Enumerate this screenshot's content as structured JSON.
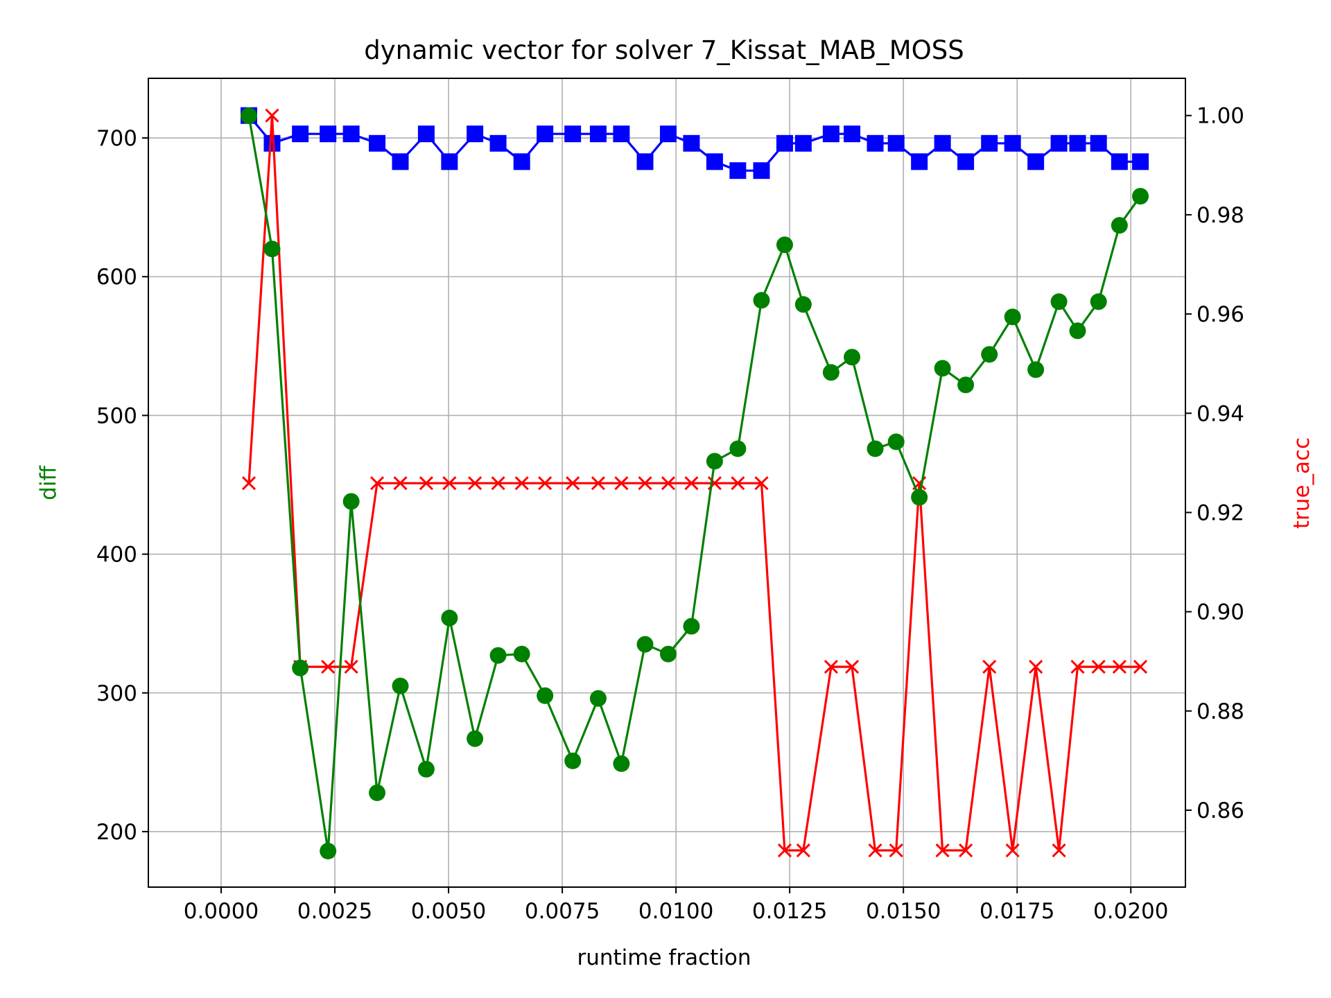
{
  "chart_data": {
    "type": "line",
    "title": "dynamic vector for solver 7_Kissat_MAB_MOSS",
    "xlabel": "runtime fraction",
    "ylabel_left": "diff",
    "ylabel_right": "true_acc",
    "xlim": [
      -0.0016,
      0.0212
    ],
    "ylim_left": [
      160,
      743
    ],
    "ylim_right": [
      0.8445,
      1.0075
    ],
    "x_ticks": [
      0.0,
      0.0025,
      0.005,
      0.0075,
      0.01,
      0.0125,
      0.015,
      0.0175,
      0.02
    ],
    "x_tick_labels": [
      "0.0000",
      "0.0025",
      "0.0050",
      "0.0075",
      "0.0100",
      "0.0125",
      "0.0150",
      "0.0175",
      "0.0200"
    ],
    "y_left_ticks": [
      200,
      300,
      400,
      500,
      600,
      700
    ],
    "y_left_tick_labels": [
      "200",
      "300",
      "400",
      "500",
      "600",
      "700"
    ],
    "y_right_ticks": [
      0.86,
      0.88,
      0.9,
      0.92,
      0.94,
      0.96,
      0.98,
      1.0
    ],
    "y_right_tick_labels": [
      "0.86",
      "0.88",
      "0.90",
      "0.92",
      "0.94",
      "0.96",
      "0.98",
      "1.00"
    ],
    "grid": true,
    "x": [
      0.00061,
      0.00112,
      0.00174,
      0.00235,
      0.00286,
      0.00343,
      0.00394,
      0.00451,
      0.00502,
      0.00558,
      0.00609,
      0.00661,
      0.00712,
      0.00773,
      0.00829,
      0.0088,
      0.00932,
      0.00983,
      0.01034,
      0.01085,
      0.01136,
      0.01188,
      0.01239,
      0.0128,
      0.01341,
      0.01387,
      0.01438,
      0.01484,
      0.01535,
      0.01586,
      0.01637,
      0.01689,
      0.0174,
      0.01791,
      0.01842,
      0.01883,
      0.01929,
      0.01975,
      0.02021
    ],
    "series": [
      {
        "axis": "left",
        "color": "#008000",
        "marker": "circle",
        "values": [
          716,
          620,
          318,
          186,
          438,
          228,
          305,
          245,
          354,
          267,
          327,
          328,
          298,
          251,
          296,
          249,
          335,
          328,
          348,
          467,
          476,
          583,
          623,
          580,
          531,
          542,
          476,
          481,
          441,
          534,
          522,
          544,
          571,
          533,
          582,
          561,
          582,
          637,
          658
        ]
      },
      {
        "axis": "right",
        "color": "#0000ff",
        "marker": "square",
        "values": [
          1.0,
          0.9944,
          0.9963,
          0.9963,
          0.9963,
          0.9944,
          0.9907,
          0.9963,
          0.9907,
          0.9963,
          0.9944,
          0.9907,
          0.9963,
          0.9963,
          0.9963,
          0.9963,
          0.9907,
          0.9963,
          0.9944,
          0.9907,
          0.9889,
          0.9889,
          0.9944,
          0.9944,
          0.9963,
          0.9963,
          0.9944,
          0.9944,
          0.9907,
          0.9944,
          0.9907,
          0.9944,
          0.9944,
          0.9907,
          0.9944,
          0.9944,
          0.9944,
          0.9907,
          0.9907
        ]
      },
      {
        "axis": "right",
        "color": "#ff0000",
        "marker": "x",
        "values": [
          0.9259,
          1.0,
          0.8889,
          0.8889,
          0.8889,
          0.9259,
          0.9259,
          0.9259,
          0.9259,
          0.9259,
          0.9259,
          0.9259,
          0.9259,
          0.9259,
          0.9259,
          0.9259,
          0.9259,
          0.9259,
          0.9259,
          0.9259,
          0.9259,
          0.9259,
          0.8519,
          0.8519,
          0.8889,
          0.8889,
          0.8519,
          0.8519,
          0.9259,
          0.8519,
          0.8519,
          0.8889,
          0.8519,
          0.8889,
          0.8519,
          0.8889,
          0.8889,
          0.8889,
          0.8889
        ]
      }
    ]
  }
}
